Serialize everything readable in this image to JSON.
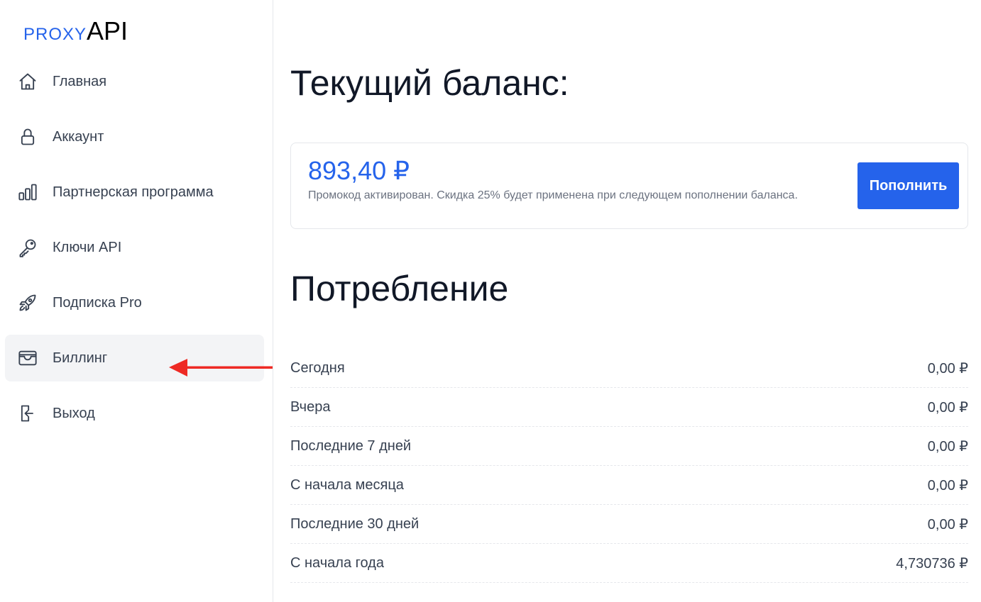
{
  "logo": {
    "proxy": "PROXY",
    "api": "API"
  },
  "sidebar": {
    "items": [
      {
        "label": "Главная",
        "icon": "home-icon"
      },
      {
        "label": "Аккаунт",
        "icon": "lock-icon"
      },
      {
        "label": "Партнерская программа",
        "icon": "chart-bars-icon"
      },
      {
        "label": "Ключи API",
        "icon": "key-icon"
      },
      {
        "label": "Подписка Pro",
        "icon": "rocket-icon"
      },
      {
        "label": "Биллинг",
        "icon": "wallet-icon",
        "active": true
      },
      {
        "label": "Выход",
        "icon": "logout-icon"
      }
    ]
  },
  "balance": {
    "title": "Текущий баланс:",
    "amount": "893,40 ₽",
    "note": "Промокод активирован. Скидка 25% будет применена при следующем пополнении баланса.",
    "topup_label": "Пополнить"
  },
  "usage": {
    "title": "Потребление",
    "rows": [
      {
        "label": "Сегодня",
        "value": "0,00 ₽"
      },
      {
        "label": "Вчера",
        "value": "0,00 ₽"
      },
      {
        "label": "Последние 7 дней",
        "value": "0,00 ₽"
      },
      {
        "label": "С начала месяца",
        "value": "0,00 ₽"
      },
      {
        "label": "Последние 30 дней",
        "value": "0,00 ₽"
      },
      {
        "label": "С начала года",
        "value": "4,730736 ₽"
      }
    ]
  },
  "colors": {
    "accent": "#2563eb",
    "arrow": "#ee2a24",
    "active_bg": "#f3f4f6"
  }
}
